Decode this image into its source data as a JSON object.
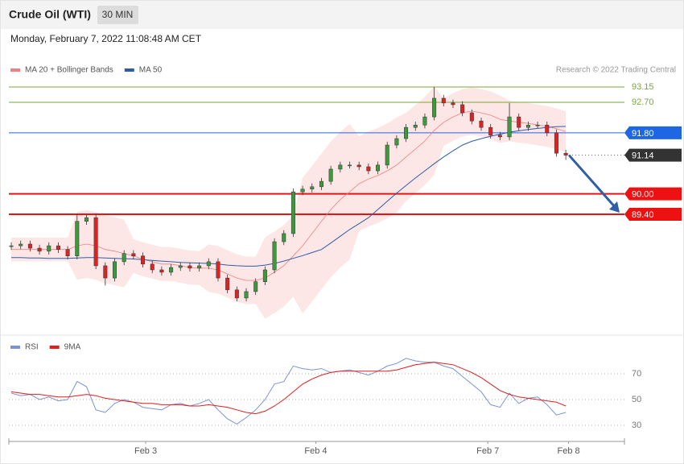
{
  "header": {
    "title": "Crude Oil (WTI)",
    "timeframe": "30 MIN",
    "timestamp": "Monday, February 7, 2022 11:08:48 AM CET",
    "credit": "Research © 2022 Trading Central"
  },
  "chart_data": [
    {
      "type": "candlestick",
      "ylim": [
        85.86,
        93.46
      ],
      "xlim": [
        -0.26,
        65.24
      ],
      "up_color": "#3c9a3c",
      "down_color": "#dd2222",
      "open": [
        88.45,
        88.47,
        88.52,
        88.4,
        88.31,
        88.47,
        88.36,
        88.17,
        89.19,
        89.3,
        87.88,
        87.52,
        88.0,
        88.24,
        88.17,
        87.93,
        87.76,
        87.69,
        87.83,
        87.88,
        87.81,
        87.88,
        88.0,
        87.52,
        87.17,
        86.93,
        87.12,
        87.41,
        87.76,
        88.59,
        88.83,
        90.06,
        90.14,
        90.21,
        90.37,
        90.73,
        90.85,
        90.85,
        90.8,
        90.68,
        90.85,
        91.44,
        91.63,
        91.96,
        92.03,
        92.27,
        92.82,
        92.68,
        92.63,
        92.39,
        92.15,
        91.96,
        91.73,
        91.68,
        92.27,
        91.96,
        92.03,
        92.03,
        91.8,
        91.2
      ],
      "high": [
        88.57,
        88.62,
        88.62,
        88.5,
        88.57,
        88.57,
        88.46,
        89.4,
        89.38,
        89.4,
        87.98,
        88.1,
        88.34,
        88.34,
        88.27,
        88.03,
        87.86,
        87.93,
        87.98,
        87.98,
        87.98,
        88.1,
        88.1,
        87.62,
        87.27,
        87.22,
        87.51,
        87.86,
        88.69,
        88.93,
        90.16,
        90.24,
        90.31,
        90.47,
        90.83,
        90.95,
        90.95,
        90.95,
        90.9,
        90.95,
        91.54,
        91.73,
        92.06,
        92.13,
        92.37,
        93.15,
        92.92,
        92.78,
        92.73,
        92.49,
        92.25,
        92.06,
        91.83,
        92.68,
        92.37,
        92.13,
        92.13,
        92.13,
        91.9,
        91.3
      ],
      "low": [
        88.35,
        88.37,
        88.3,
        88.21,
        88.21,
        88.26,
        88.07,
        88.07,
        89.09,
        87.78,
        87.3,
        87.42,
        87.9,
        88.07,
        87.83,
        87.66,
        87.59,
        87.59,
        87.73,
        87.71,
        87.71,
        87.78,
        87.42,
        87.07,
        86.83,
        86.83,
        87.02,
        87.31,
        87.66,
        88.49,
        88.73,
        89.96,
        90.04,
        90.11,
        90.27,
        90.63,
        90.75,
        90.7,
        90.58,
        90.58,
        90.75,
        91.34,
        91.53,
        91.86,
        91.93,
        92.17,
        92.58,
        92.53,
        92.29,
        92.05,
        91.86,
        91.63,
        91.58,
        91.58,
        91.86,
        91.86,
        91.93,
        91.7,
        91.1,
        91.0
      ],
      "close": [
        88.47,
        88.52,
        88.4,
        88.31,
        88.47,
        88.36,
        88.17,
        89.19,
        89.3,
        87.88,
        87.52,
        88.0,
        88.24,
        88.17,
        87.93,
        87.76,
        87.69,
        87.83,
        87.88,
        87.81,
        87.88,
        88.0,
        87.52,
        87.17,
        86.93,
        87.12,
        87.41,
        87.76,
        88.59,
        88.83,
        90.06,
        90.14,
        90.21,
        90.37,
        90.73,
        90.85,
        90.85,
        90.8,
        90.68,
        90.85,
        91.44,
        91.63,
        91.96,
        92.03,
        92.27,
        92.82,
        92.68,
        92.63,
        92.39,
        92.15,
        91.96,
        91.73,
        91.68,
        92.27,
        91.96,
        92.03,
        92.03,
        91.8,
        91.2,
        91.14
      ],
      "series": [
        {
          "name": "MA 20 + Bollinger Bands",
          "color": "#f08080",
          "band_color": "#fde3e3",
          "values": [
            88.36,
            88.36,
            88.36,
            88.36,
            88.36,
            88.36,
            88.36,
            88.47,
            88.52,
            88.47,
            88.36,
            88.31,
            88.24,
            88.17,
            88.07,
            88.0,
            87.93,
            87.93,
            87.88,
            87.83,
            87.81,
            87.81,
            87.76,
            87.64,
            87.52,
            87.45,
            87.45,
            87.52,
            87.69,
            87.88,
            88.17,
            88.47,
            88.83,
            89.19,
            89.54,
            89.83,
            90.06,
            90.3,
            90.44,
            90.54,
            90.68,
            90.85,
            91.09,
            91.32,
            91.56,
            91.87,
            92.11,
            92.27,
            92.39,
            92.44,
            92.39,
            92.32,
            92.2,
            92.15,
            92.11,
            92.08,
            92.03,
            91.99,
            91.92,
            91.84
          ],
          "upper": [
            88.71,
            88.71,
            88.71,
            88.71,
            88.71,
            88.71,
            88.71,
            89.47,
            89.52,
            89.47,
            89.36,
            89.31,
            89.24,
            88.67,
            88.57,
            88.5,
            88.43,
            88.43,
            88.38,
            88.33,
            88.31,
            88.51,
            88.46,
            88.34,
            88.22,
            88.15,
            88.15,
            88.72,
            88.89,
            89.08,
            89.37,
            90.47,
            90.83,
            91.19,
            91.54,
            91.83,
            92.06,
            91.7,
            91.84,
            91.94,
            92.08,
            92.25,
            92.39,
            92.62,
            92.86,
            93.17,
            92.81,
            92.97,
            93.09,
            93.14,
            93.09,
            93.02,
            92.9,
            92.75,
            92.71,
            92.68,
            92.63,
            92.59,
            92.52,
            92.44
          ],
          "lower": [
            88.01,
            88.01,
            88.01,
            88.01,
            88.01,
            88.01,
            88.01,
            87.47,
            87.52,
            87.47,
            87.36,
            87.31,
            87.24,
            87.67,
            87.57,
            87.5,
            87.43,
            87.43,
            87.38,
            87.33,
            87.31,
            87.11,
            87.06,
            86.94,
            86.82,
            86.75,
            86.75,
            86.32,
            86.49,
            86.68,
            86.97,
            86.47,
            86.83,
            87.19,
            87.54,
            87.83,
            88.06,
            88.9,
            89.04,
            89.14,
            89.28,
            89.45,
            89.79,
            90.02,
            90.26,
            90.57,
            91.41,
            91.57,
            91.69,
            91.74,
            91.69,
            91.62,
            91.5,
            91.55,
            91.51,
            91.48,
            91.43,
            91.39,
            91.32,
            91.24
          ]
        },
        {
          "name": "MA 50",
          "color": "#2f5ca8",
          "values": [
            88.12,
            88.12,
            88.11,
            88.11,
            88.1,
            88.1,
            88.1,
            88.11,
            88.12,
            88.12,
            88.11,
            88.1,
            88.09,
            88.08,
            88.06,
            88.04,
            88.02,
            88.0,
            87.98,
            87.97,
            87.96,
            87.95,
            87.93,
            87.9,
            87.88,
            87.87,
            87.87,
            87.9,
            87.95,
            88.02,
            88.1,
            88.18,
            88.27,
            88.36,
            88.55,
            88.75,
            88.95,
            89.12,
            89.3,
            89.54,
            89.78,
            90.02,
            90.25,
            90.47,
            90.68,
            90.89,
            91.09,
            91.27,
            91.44,
            91.55,
            91.63,
            91.7,
            91.76,
            91.82,
            91.86,
            91.9,
            91.93,
            91.96,
            91.98,
            91.99
          ]
        }
      ],
      "levels": [
        {
          "value": 93.15,
          "label": "93.15",
          "color": "#7aa83a",
          "style": "text"
        },
        {
          "value": 92.7,
          "label": "92.70",
          "color": "#7aa83a",
          "style": "text"
        },
        {
          "value": 91.8,
          "label": "91.80",
          "color": "#1f66e5",
          "style": "box"
        },
        {
          "value": 90.0,
          "label": "90.00",
          "color": "#ee1111",
          "style": "box"
        },
        {
          "value": 89.4,
          "label": "89.40",
          "color": "#ee1111",
          "style": "box"
        }
      ]
    },
    {
      "type": "line",
      "ylim": [
        17.5,
        85
      ],
      "xlim": [
        -0.26,
        65.24
      ],
      "yticks": [
        30,
        50,
        70
      ],
      "xticks": [
        {
          "value": 14.3,
          "label": "Feb 3"
        },
        {
          "value": 32.4,
          "label": "Feb 4"
        },
        {
          "value": 50.7,
          "label": "Feb 7"
        },
        {
          "value": 59.3,
          "label": "Feb 8"
        }
      ],
      "series": [
        {
          "name": "RSI",
          "color": "#7b93d6",
          "values": [
            55,
            53,
            54,
            50,
            52,
            49,
            50,
            64,
            60,
            42,
            40,
            47,
            50,
            48,
            44,
            43,
            42,
            46,
            47,
            45,
            47,
            50,
            42,
            35,
            31,
            36,
            42,
            50,
            62,
            64,
            76,
            74,
            73,
            74,
            71,
            72,
            73,
            71,
            69,
            72,
            76,
            78,
            82,
            80,
            79,
            79,
            76,
            74,
            68,
            62,
            56,
            46,
            44,
            55,
            47,
            51,
            52,
            46,
            38,
            40
          ]
        },
        {
          "name": "9MA",
          "color": "#e51c1c",
          "values": [
            56,
            55,
            54,
            54,
            53,
            52,
            52,
            53,
            54,
            53,
            51,
            50,
            49,
            48,
            47,
            47,
            46,
            46,
            46,
            45,
            45,
            46,
            45,
            44,
            42,
            40,
            39,
            41,
            45,
            50,
            56,
            62,
            66,
            69,
            71,
            72,
            72,
            72,
            72,
            72,
            72,
            73,
            75,
            77,
            78,
            79,
            78,
            77,
            74,
            71,
            67,
            62,
            57,
            54,
            52,
            51,
            50,
            49,
            48,
            45
          ]
        }
      ]
    }
  ]
}
